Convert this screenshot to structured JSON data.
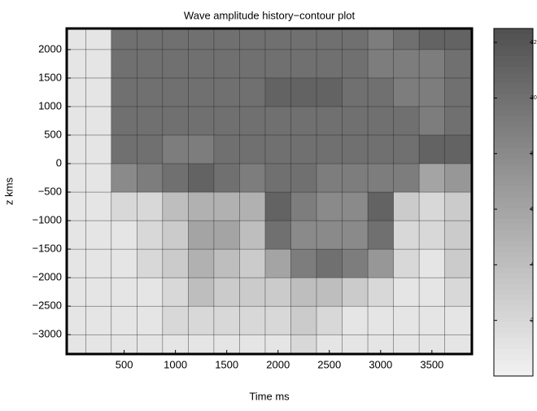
{
  "chart_data": {
    "type": "heatmap",
    "title": "Wave amplitude history−contour plot",
    "xlabel": "Time ms",
    "ylabel": "z kms",
    "x": [
      0,
      250,
      500,
      750,
      1000,
      1250,
      1500,
      1750,
      2000,
      2250,
      2500,
      2750,
      3000,
      3250,
      3500,
      3750
    ],
    "y": [
      2250,
      1750,
      1250,
      750,
      250,
      -250,
      -750,
      -1250,
      -1750,
      -2250,
      -2750,
      -3250
    ],
    "z": [
      [
        1,
        1,
        10,
        10,
        10,
        10,
        10,
        10,
        10,
        10,
        10,
        10,
        9,
        10,
        11,
        11
      ],
      [
        1,
        1,
        10,
        10,
        10,
        10,
        10,
        10,
        10,
        10,
        10,
        10,
        9,
        9,
        9,
        10
      ],
      [
        1,
        1,
        10,
        10,
        10,
        10,
        10,
        10,
        11,
        11,
        11,
        10,
        10,
        9,
        9,
        10
      ],
      [
        1,
        1,
        10,
        10,
        10,
        10,
        10,
        10,
        10,
        10,
        10,
        10,
        10,
        10,
        9,
        10
      ],
      [
        1,
        1,
        10,
        10,
        9,
        9,
        10,
        10,
        10,
        10,
        10,
        10,
        10,
        10,
        11,
        11
      ],
      [
        1,
        1,
        8,
        9,
        10,
        11,
        10,
        9,
        10,
        10,
        9,
        9,
        9,
        9,
        6,
        7
      ],
      [
        1,
        1,
        2,
        2,
        4,
        5,
        5,
        5,
        11,
        9,
        8,
        8,
        11,
        3,
        2,
        3
      ],
      [
        1,
        1,
        1,
        2,
        3,
        6,
        6,
        4,
        10,
        8,
        8,
        8,
        10,
        2,
        2,
        3
      ],
      [
        1,
        1,
        1,
        2,
        3,
        5,
        4,
        3,
        6,
        9,
        10,
        9,
        7,
        2,
        1,
        3
      ],
      [
        1,
        1,
        1,
        1,
        2,
        4,
        3,
        3,
        3,
        4,
        4,
        3,
        2,
        1,
        1,
        2
      ],
      [
        1,
        1,
        1,
        1,
        2,
        2,
        2,
        2,
        2,
        3,
        2,
        1,
        1,
        1,
        1,
        1
      ],
      [
        1,
        1,
        1,
        1,
        1,
        1,
        1,
        1,
        1,
        2,
        1,
        1,
        1,
        1,
        1,
        1
      ]
    ],
    "xlim": [
      -60,
      3890
    ],
    "ylim": [
      -3340,
      2370
    ],
    "xticks": [
      500,
      1000,
      1500,
      2000,
      2500,
      3000,
      3500
    ],
    "yticks": [
      2000,
      1500,
      1000,
      500,
      0,
      {
        "value": -500,
        "label": "−500"
      },
      {
        "value": -1000,
        "label": "−1000"
      },
      {
        "value": -1500,
        "label": "−1500"
      },
      {
        "value": -2000,
        "label": "−2000"
      },
      {
        "value": -2500,
        "label": "−2500"
      },
      {
        "value": -3000,
        "label": "−3000"
      }
    ],
    "clim": [
      0,
      12.5
    ],
    "cticks": [
      2,
      4,
      6,
      8,
      10,
      12
    ],
    "colormap": [
      "#f2f2f2",
      "#505050"
    ]
  }
}
